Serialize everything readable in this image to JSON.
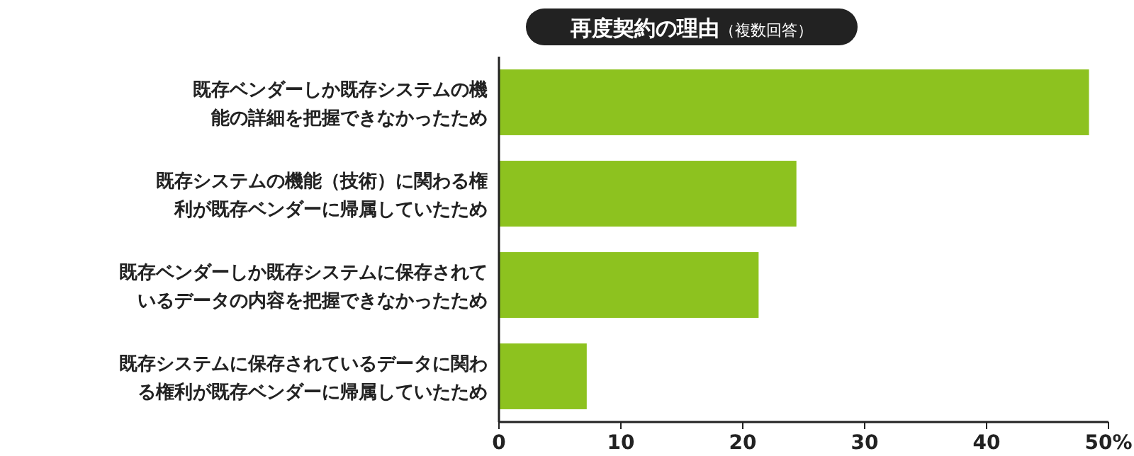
{
  "chart_data": {
    "type": "bar",
    "orientation": "horizontal",
    "title": "再度契約の理由",
    "subtitle": "（複数回答）",
    "categories": [
      "既存ベンダーしか既存システムの機能の詳細を把握できなかったため",
      "既存システムの機能（技術）に関わる権利が既存ベンダーに帰属していたため",
      "既存ベンダーしか既存システムに保存されているデータの内容を把握できなかったため",
      "既存システムに保存されているデータに関わる権利が既存ベンダーに帰属していたため"
    ],
    "values": [
      48.4,
      24.4,
      21.3,
      7.2
    ],
    "color": "#8dc21f",
    "xlim": [
      0,
      50
    ],
    "xticks": [
      0,
      10,
      20,
      30,
      40,
      {
        "value": 50,
        "label": "50%"
      }
    ],
    "grid": false
  }
}
